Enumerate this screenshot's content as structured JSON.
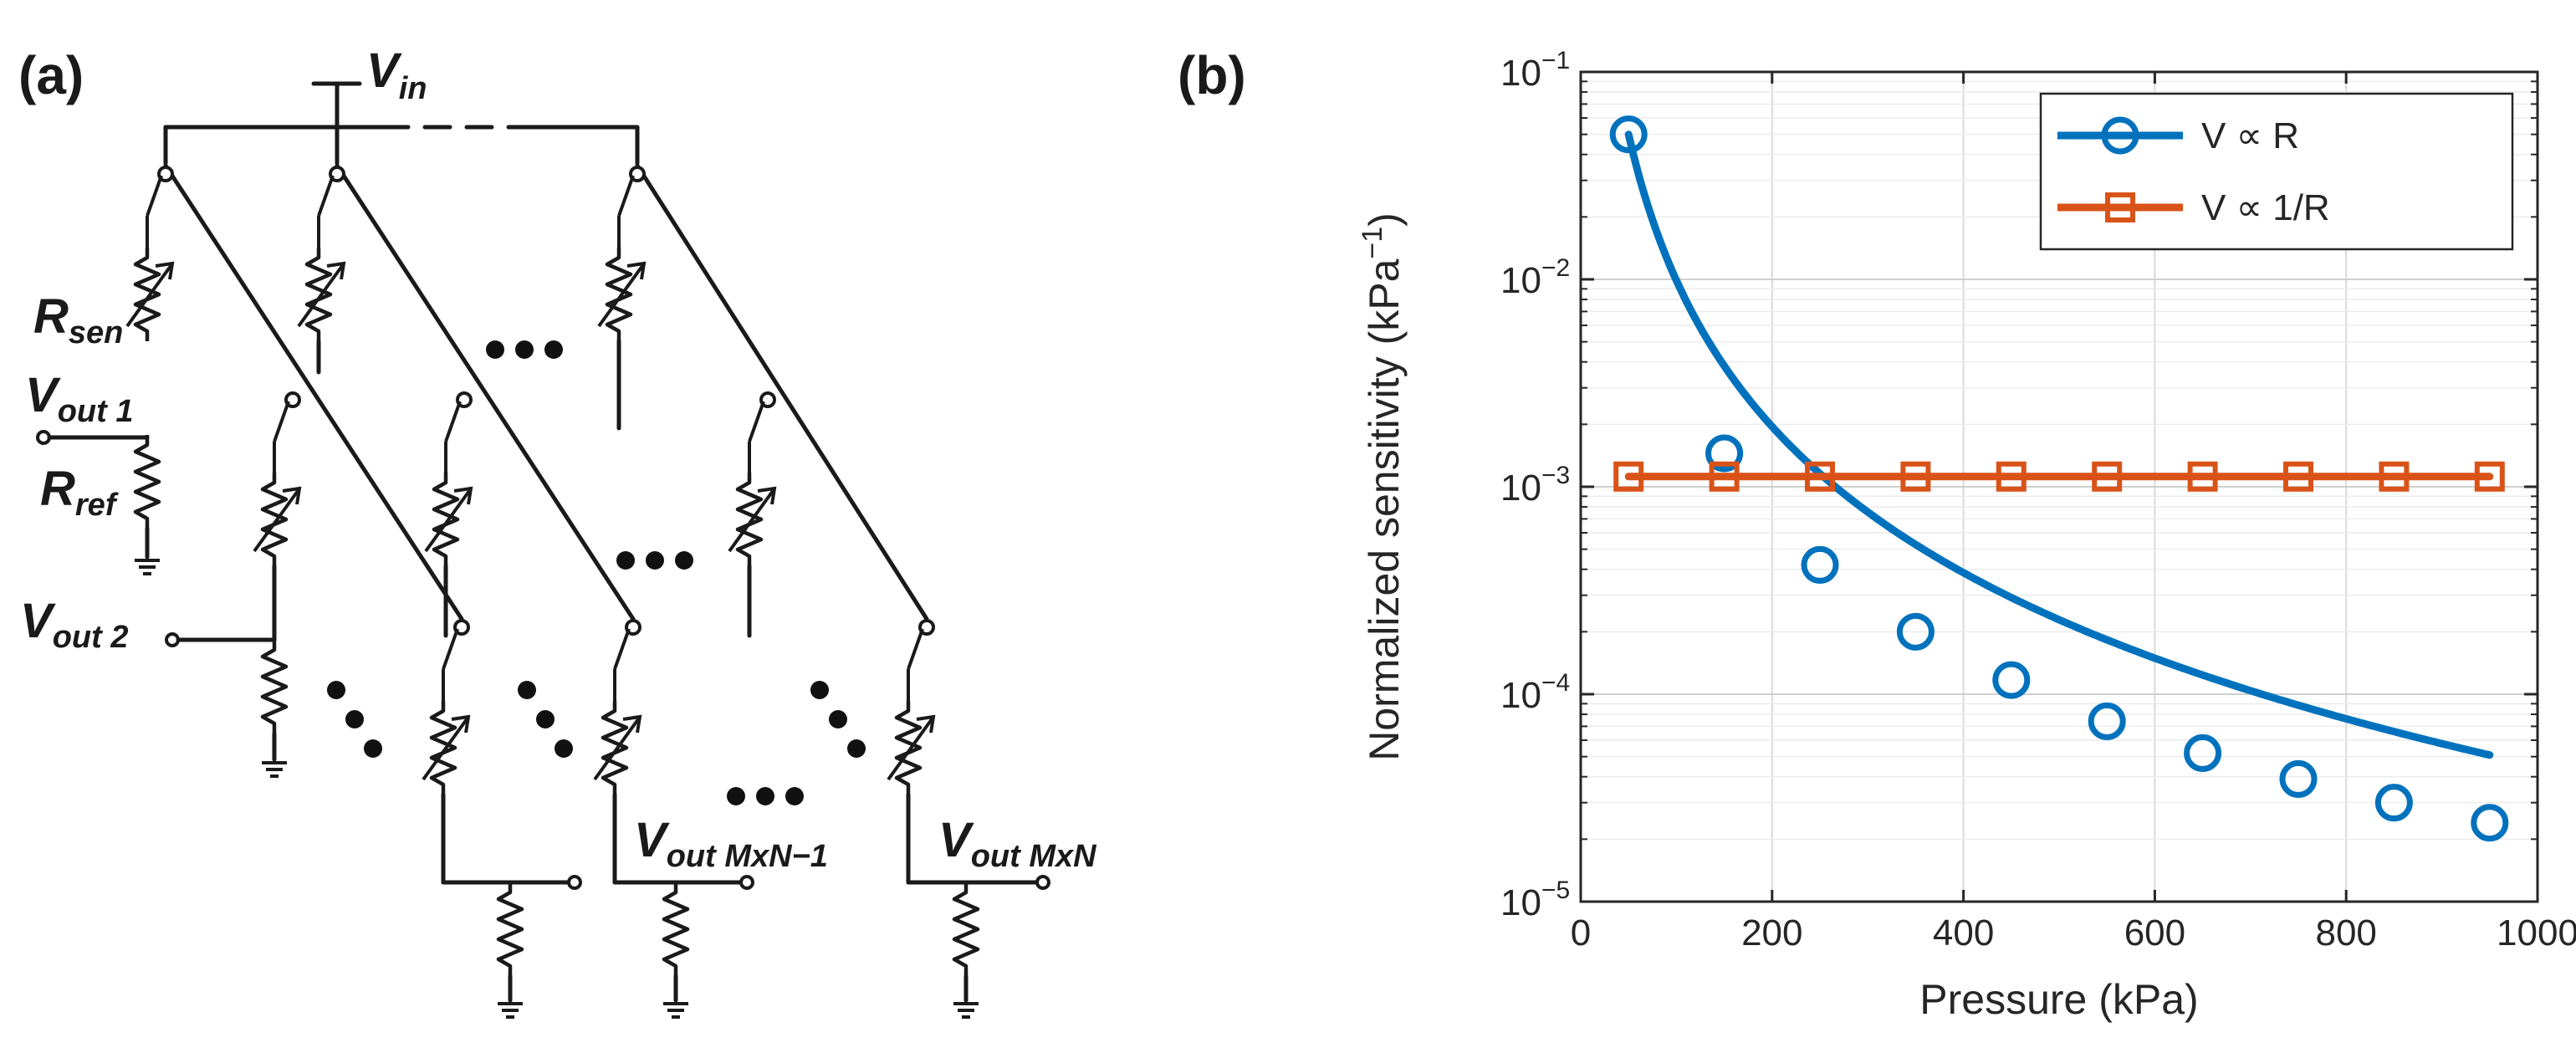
{
  "panel_a": {
    "label": "(a)",
    "vin": {
      "main": "V",
      "sub": "in"
    },
    "rsen": {
      "main": "R",
      "sub": "sen"
    },
    "rref": {
      "main": "R",
      "sub": "ref"
    },
    "vout1": {
      "main": "V",
      "sub": "out 1"
    },
    "vout2": {
      "main": "V",
      "sub": "out 2"
    },
    "vout_mn1": {
      "main": "V",
      "sub": "out MxN−1"
    },
    "vout_mn": {
      "main": "V",
      "sub": "out MxN"
    }
  },
  "panel_b": {
    "label": "(b)"
  },
  "chart_data": {
    "type": "line",
    "title": "",
    "xlabel": "Pressure (kPa)",
    "ylabel": "Normalized sensitivity (kPa",
    "ylabel_exp": "−1",
    "ylabel_close": ")",
    "xlim": [
      0,
      1000
    ],
    "ylim": [
      1e-05,
      0.1
    ],
    "yscale": "log",
    "grid": true,
    "legend_position": "top-right",
    "xticks": [
      {
        "v": 0,
        "label": "0"
      },
      {
        "v": 200,
        "label": "200"
      },
      {
        "v": 400,
        "label": "400"
      },
      {
        "v": 600,
        "label": "600"
      },
      {
        "v": 800,
        "label": "800"
      },
      {
        "v": 1000,
        "label": "1000"
      }
    ],
    "yticks": [
      {
        "v": 1e-05,
        "base": "10",
        "exp": "−5"
      },
      {
        "v": 0.0001,
        "base": "10",
        "exp": "−4"
      },
      {
        "v": 0.001,
        "base": "10",
        "exp": "−3"
      },
      {
        "v": 0.01,
        "base": "10",
        "exp": "−2"
      },
      {
        "v": 0.1,
        "base": "10",
        "exp": "−1"
      }
    ],
    "series": [
      {
        "name": "V ∝ R",
        "color": "#0072BD",
        "marker": "circle",
        "curve": "inverse-square",
        "x": [
          50,
          150,
          250,
          350,
          450,
          550,
          650,
          750,
          850,
          950
        ],
        "values": [
          0.05,
          0.00145,
          0.00042,
          0.0002,
          0.000117,
          7.4e-05,
          5.2e-05,
          3.9e-05,
          3e-05,
          2.4e-05
        ]
      },
      {
        "name": "V ∝ 1/R",
        "color": "#D95319",
        "marker": "square",
        "curve": "linear",
        "x": [
          50,
          150,
          250,
          350,
          450,
          550,
          650,
          750,
          850,
          950
        ],
        "values": [
          0.00112,
          0.00112,
          0.00112,
          0.00112,
          0.00112,
          0.00112,
          0.00112,
          0.00112,
          0.00112,
          0.00112
        ]
      }
    ]
  }
}
